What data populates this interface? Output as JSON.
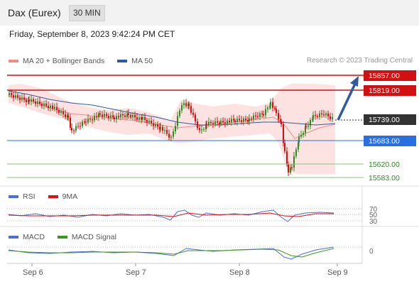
{
  "header": {
    "instrument": "Dax (Eurex)",
    "timeframe": "30 MIN"
  },
  "datetime": "Friday, September 8, 2023 9:42:24 PM CET",
  "research": "Research © 2023 Trading Central",
  "legend_main": [
    {
      "label": "MA 20 + Bollinger Bands",
      "color": "#f28b82"
    },
    {
      "label": "MA 50",
      "color": "#2f5a9e"
    }
  ],
  "legend_rsi": [
    {
      "label": "RSI",
      "color": "#4a6fd6"
    },
    {
      "label": "9MA",
      "color": "#d11"
    }
  ],
  "legend_macd": [
    {
      "label": "MACD",
      "color": "#4a6fd6"
    },
    {
      "label": "MACD Signal",
      "color": "#3a9a1a"
    }
  ],
  "levels": [
    {
      "label": "15857.00",
      "color": "#d11111",
      "style": "resistance"
    },
    {
      "label": "15819.00",
      "color": "#d11111",
      "style": "resistance"
    },
    {
      "label": "15739.00",
      "color": "#333333",
      "style": "current"
    },
    {
      "label": "15683.00",
      "color": "#2a6fe0",
      "style": "pivot"
    },
    {
      "label": "15620.00",
      "color": "#2e8b22",
      "style": "support"
    },
    {
      "label": "15583.00",
      "color": "#2e8b22",
      "style": "support"
    }
  ],
  "rsi_levels": [
    "70",
    "50",
    "30"
  ],
  "macd_level": "0",
  "x_labels": [
    "Sep 6",
    "Sep 7",
    "Sep 8",
    "Sep 9"
  ],
  "colors": {
    "bull": "#2e8b22",
    "bear": "#d11111",
    "band": "#fde2e2",
    "forecast": "#2f5a9e"
  }
}
